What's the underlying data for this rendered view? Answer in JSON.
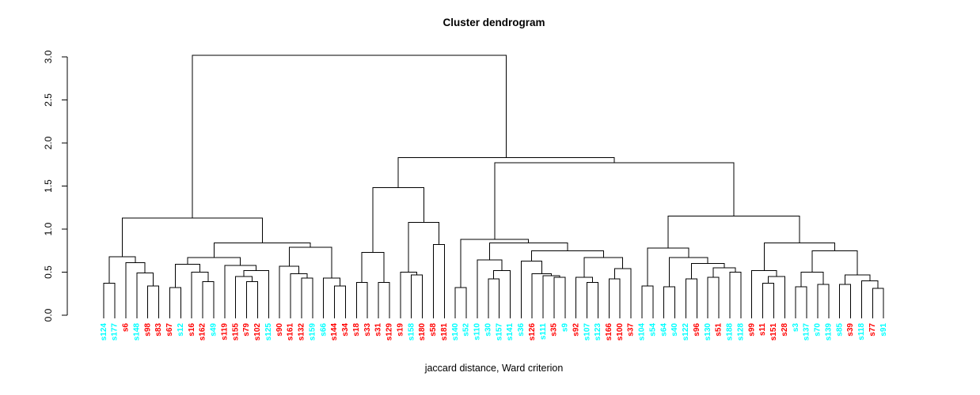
{
  "chart_data": {
    "type": "dendrogram",
    "title": "Cluster dendrogram",
    "xlabel": "jaccard distance, Ward criterion",
    "y_axis": {
      "tick_labels": [
        "0.0",
        "0.5",
        "1.0",
        "1.5",
        "2.0",
        "2.5",
        "3.0"
      ],
      "tick_values": [
        0.0,
        0.5,
        1.0,
        1.5,
        2.0,
        2.5,
        3.0
      ],
      "ylim": [
        0,
        3
      ]
    },
    "line_color": "#000000",
    "cluster_colors": {
      "cyan": "#00FFFF",
      "red": "#FF0000"
    },
    "leaves": [
      {
        "label": "s124",
        "color": "#00FFFF"
      },
      {
        "label": "s177",
        "color": "#00FFFF"
      },
      {
        "label": "s6",
        "color": "#FF0000"
      },
      {
        "label": "s148",
        "color": "#00FFFF"
      },
      {
        "label": "s98",
        "color": "#FF0000"
      },
      {
        "label": "s83",
        "color": "#FF0000"
      },
      {
        "label": "s67",
        "color": "#FF0000"
      },
      {
        "label": "s12",
        "color": "#00FFFF"
      },
      {
        "label": "s16",
        "color": "#FF0000"
      },
      {
        "label": "s162",
        "color": "#FF0000"
      },
      {
        "label": "s49",
        "color": "#00FFFF"
      },
      {
        "label": "s119",
        "color": "#FF0000"
      },
      {
        "label": "s155",
        "color": "#FF0000"
      },
      {
        "label": "s79",
        "color": "#FF0000"
      },
      {
        "label": "s102",
        "color": "#FF0000"
      },
      {
        "label": "s125",
        "color": "#00FFFF"
      },
      {
        "label": "s90",
        "color": "#FF0000"
      },
      {
        "label": "s161",
        "color": "#FF0000"
      },
      {
        "label": "s132",
        "color": "#FF0000"
      },
      {
        "label": "s159",
        "color": "#00FFFF"
      },
      {
        "label": "s66",
        "color": "#00FFFF"
      },
      {
        "label": "s144",
        "color": "#FF0000"
      },
      {
        "label": "s34",
        "color": "#FF0000"
      },
      {
        "label": "s18",
        "color": "#FF0000"
      },
      {
        "label": "s33",
        "color": "#FF0000"
      },
      {
        "label": "s31",
        "color": "#FF0000"
      },
      {
        "label": "s129",
        "color": "#FF0000"
      },
      {
        "label": "s19",
        "color": "#FF0000"
      },
      {
        "label": "s158",
        "color": "#00FFFF"
      },
      {
        "label": "s180",
        "color": "#FF0000"
      },
      {
        "label": "s58",
        "color": "#FF0000"
      },
      {
        "label": "s181",
        "color": "#FF0000"
      },
      {
        "label": "s140",
        "color": "#00FFFF"
      },
      {
        "label": "s52",
        "color": "#00FFFF"
      },
      {
        "label": "s110",
        "color": "#00FFFF"
      },
      {
        "label": "s30",
        "color": "#00FFFF"
      },
      {
        "label": "s157",
        "color": "#00FFFF"
      },
      {
        "label": "s141",
        "color": "#00FFFF"
      },
      {
        "label": "s36",
        "color": "#00FFFF"
      },
      {
        "label": "s126",
        "color": "#FF0000"
      },
      {
        "label": "s111",
        "color": "#00FFFF"
      },
      {
        "label": "s35",
        "color": "#FF0000"
      },
      {
        "label": "s9",
        "color": "#00FFFF"
      },
      {
        "label": "s92",
        "color": "#FF0000"
      },
      {
        "label": "s107",
        "color": "#00FFFF"
      },
      {
        "label": "s123",
        "color": "#00FFFF"
      },
      {
        "label": "s166",
        "color": "#FF0000"
      },
      {
        "label": "s100",
        "color": "#FF0000"
      },
      {
        "label": "s37",
        "color": "#FF0000"
      },
      {
        "label": "s104",
        "color": "#00FFFF"
      },
      {
        "label": "s54",
        "color": "#00FFFF"
      },
      {
        "label": "s64",
        "color": "#00FFFF"
      },
      {
        "label": "s40",
        "color": "#00FFFF"
      },
      {
        "label": "s122",
        "color": "#00FFFF"
      },
      {
        "label": "s96",
        "color": "#FF0000"
      },
      {
        "label": "s130",
        "color": "#00FFFF"
      },
      {
        "label": "s51",
        "color": "#FF0000"
      },
      {
        "label": "s188",
        "color": "#00FFFF"
      },
      {
        "label": "s128",
        "color": "#00FFFF"
      },
      {
        "label": "s99",
        "color": "#FF0000"
      },
      {
        "label": "s11",
        "color": "#FF0000"
      },
      {
        "label": "s151",
        "color": "#FF0000"
      },
      {
        "label": "s28",
        "color": "#FF0000"
      },
      {
        "label": "s3",
        "color": "#00FFFF"
      },
      {
        "label": "s137",
        "color": "#00FFFF"
      },
      {
        "label": "s70",
        "color": "#00FFFF"
      },
      {
        "label": "s139",
        "color": "#00FFFF"
      },
      {
        "label": "s85",
        "color": "#00FFFF"
      },
      {
        "label": "s39",
        "color": "#FF0000"
      },
      {
        "label": "s118",
        "color": "#00FFFF"
      },
      {
        "label": "s77",
        "color": "#FF0000"
      },
      {
        "label": "s91",
        "color": "#00FFFF"
      }
    ],
    "tree": {
      "h": 3.02,
      "c": [
        {
          "h": 1.13,
          "c": [
            {
              "h": 0.68,
              "c": [
                {
                  "h": 0.37,
                  "c": [
                    "s124",
                    "s177"
                  ]
                },
                {
                  "h": 0.61,
                  "c": [
                    "s6",
                    {
                      "h": 0.49,
                      "c": [
                        "s148",
                        {
                          "h": 0.34,
                          "c": [
                            "s98",
                            "s83"
                          ]
                        }
                      ]
                    }
                  ]
                }
              ]
            },
            {
              "h": 0.84,
              "c": [
                {
                  "h": 0.67,
                  "c": [
                    {
                      "h": 0.59,
                      "c": [
                        {
                          "h": 0.32,
                          "c": [
                            "s67",
                            "s12"
                          ]
                        },
                        {
                          "h": 0.5,
                          "c": [
                            "s16",
                            {
                              "h": 0.39,
                              "c": [
                                "s162",
                                "s49"
                              ]
                            }
                          ]
                        }
                      ]
                    },
                    {
                      "h": 0.58,
                      "c": [
                        "s119",
                        {
                          "h": 0.52,
                          "c": [
                            {
                              "h": 0.45,
                              "c": [
                                "s155",
                                {
                                  "h": 0.39,
                                  "c": [
                                    "s79",
                                    "s102"
                                  ]
                                }
                              ]
                            },
                            "s125"
                          ]
                        }
                      ]
                    }
                  ]
                },
                {
                  "h": 0.79,
                  "c": [
                    {
                      "h": 0.57,
                      "c": [
                        "s90",
                        {
                          "h": 0.48,
                          "c": [
                            "s161",
                            {
                              "h": 0.43,
                              "c": [
                                "s132",
                                "s159"
                              ]
                            }
                          ]
                        }
                      ]
                    },
                    {
                      "h": 0.43,
                      "c": [
                        "s66",
                        {
                          "h": 0.34,
                          "c": [
                            "s144",
                            "s34"
                          ]
                        }
                      ]
                    }
                  ]
                }
              ]
            }
          ]
        },
        {
          "h": 1.83,
          "c": [
            {
              "h": 1.48,
              "c": [
                {
                  "h": 0.73,
                  "c": [
                    {
                      "h": 0.38,
                      "c": [
                        "s18",
                        "s33"
                      ]
                    },
                    {
                      "h": 0.38,
                      "c": [
                        "s31",
                        "s129"
                      ]
                    }
                  ]
                },
                {
                  "h": 1.08,
                  "c": [
                    {
                      "h": 0.5,
                      "c": [
                        "s19",
                        {
                          "h": 0.47,
                          "c": [
                            "s158",
                            "s180"
                          ]
                        }
                      ]
                    },
                    {
                      "h": 0.82,
                      "c": [
                        "s58",
                        "s181"
                      ]
                    }
                  ]
                }
              ]
            },
            {
              "h": 1.77,
              "c": [
                {
                  "h": 0.88,
                  "c": [
                    {
                      "h": 0.32,
                      "c": [
                        "s140",
                        "s52"
                      ]
                    },
                    {
                      "h": 0.84,
                      "c": [
                        {
                          "h": 0.64,
                          "c": [
                            "s110",
                            {
                              "h": 0.52,
                              "c": [
                                {
                                  "h": 0.42,
                                  "c": [
                                    "s30",
                                    "s157"
                                  ]
                                },
                                "s141"
                              ]
                            }
                          ]
                        },
                        {
                          "h": 0.75,
                          "c": [
                            {
                              "h": 0.63,
                              "c": [
                                "s36",
                                {
                                  "h": 0.48,
                                  "c": [
                                    "s126",
                                    {
                                      "h": 0.46,
                                      "c": [
                                        "s111",
                                        {
                                          "h": 0.44,
                                          "c": [
                                            "s35",
                                            "s9"
                                          ]
                                        }
                                      ]
                                    }
                                  ]
                                }
                              ]
                            },
                            {
                              "h": 0.67,
                              "c": [
                                {
                                  "h": 0.44,
                                  "c": [
                                    "s92",
                                    {
                                      "h": 0.38,
                                      "c": [
                                        "s107",
                                        "s123"
                                      ]
                                    }
                                  ]
                                },
                                {
                                  "h": 0.54,
                                  "c": [
                                    {
                                      "h": 0.42,
                                      "c": [
                                        "s166",
                                        "s100"
                                      ]
                                    },
                                    "s37"
                                  ]
                                }
                              ]
                            }
                          ]
                        }
                      ]
                    }
                  ]
                },
                {
                  "h": 1.15,
                  "c": [
                    {
                      "h": 0.78,
                      "c": [
                        {
                          "h": 0.34,
                          "c": [
                            "s104",
                            "s54"
                          ]
                        },
                        {
                          "h": 0.67,
                          "c": [
                            {
                              "h": 0.33,
                              "c": [
                                "s64",
                                "s40"
                              ]
                            },
                            {
                              "h": 0.6,
                              "c": [
                                {
                                  "h": 0.42,
                                  "c": [
                                    "s122",
                                    "s96"
                                  ]
                                },
                                {
                                  "h": 0.55,
                                  "c": [
                                    {
                                      "h": 0.44,
                                      "c": [
                                        "s130",
                                        "s51"
                                      ]
                                    },
                                    {
                                      "h": 0.5,
                                      "c": [
                                        "s188",
                                        "s128"
                                      ]
                                    }
                                  ]
                                }
                              ]
                            }
                          ]
                        }
                      ]
                    },
                    {
                      "h": 0.84,
                      "c": [
                        {
                          "h": 0.52,
                          "c": [
                            "s99",
                            {
                              "h": 0.45,
                              "c": [
                                {
                                  "h": 0.37,
                                  "c": [
                                    "s11",
                                    "s151"
                                  ]
                                },
                                "s28"
                              ]
                            }
                          ]
                        },
                        {
                          "h": 0.75,
                          "c": [
                            {
                              "h": 0.5,
                              "c": [
                                {
                                  "h": 0.33,
                                  "c": [
                                    "s3",
                                    "s137"
                                  ]
                                },
                                {
                                  "h": 0.36,
                                  "c": [
                                    "s70",
                                    "s139"
                                  ]
                                }
                              ]
                            },
                            {
                              "h": 0.47,
                              "c": [
                                {
                                  "h": 0.36,
                                  "c": [
                                    "s85",
                                    "s39"
                                  ]
                                },
                                {
                                  "h": 0.4,
                                  "c": [
                                    "s118",
                                    {
                                      "h": 0.31,
                                      "c": [
                                        "s77",
                                        "s91"
                                      ]
                                    }
                                  ]
                                }
                              ]
                            }
                          ]
                        }
                      ]
                    }
                  ]
                }
              ]
            }
          ]
        }
      ]
    }
  }
}
